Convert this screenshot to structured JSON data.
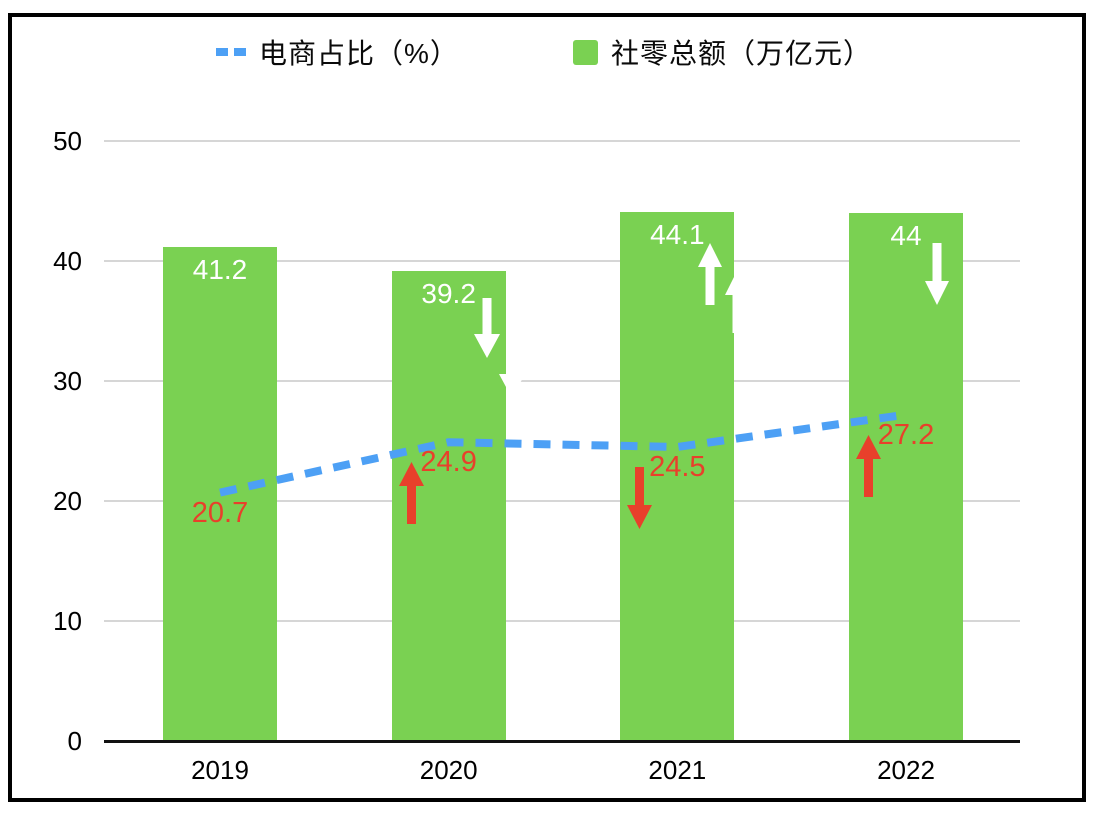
{
  "legend": [
    {
      "label": "电商占比（%）",
      "marker": "dashed-line",
      "color": "#4DA0F5"
    },
    {
      "label": "社零总额（万亿元）",
      "marker": "square",
      "color": "#7AD152"
    }
  ],
  "colors": {
    "bar_green": "#7AD152",
    "line_blue": "#4DA0F5",
    "annotation_red": "#E8402B",
    "bar_label_white": "#FFFFFF",
    "gridline_gray": "#D6D6D6",
    "axis_black": "#111111"
  },
  "chart_data": {
    "type": "combo_bar_line",
    "categories": [
      "2019",
      "2020",
      "2021",
      "2022"
    ],
    "series": [
      {
        "name": "社零总额（万亿元）",
        "type": "bar",
        "color": "#7AD152",
        "values": [
          41.2,
          39.2,
          44.1,
          44
        ],
        "labels": [
          "41.2",
          "39.2",
          "44.1",
          "44"
        ],
        "label_color": "#FFFFFF",
        "trend_arrows": [
          null,
          "down",
          "up",
          "down"
        ],
        "arrow_color": "#FFFFFF"
      },
      {
        "name": "电商占比（%）",
        "type": "line",
        "line_style": "dashed",
        "color": "#4DA0F5",
        "values": [
          20.7,
          24.9,
          24.5,
          27.2
        ],
        "labels": [
          "20.7",
          "24.9",
          "24.5",
          "27.2"
        ],
        "label_color": "#E8402B",
        "trend_arrows": [
          null,
          "up",
          "down",
          "up"
        ],
        "arrow_color": "#E8402B"
      }
    ],
    "x_axis": {
      "ticks": [
        "2019",
        "2020",
        "2021",
        "2022"
      ]
    },
    "y_axis": {
      "ticks": [
        0,
        10,
        20,
        30,
        40,
        50
      ],
      "range": [
        0,
        50
      ]
    },
    "grid": true,
    "legend_position": "top"
  }
}
